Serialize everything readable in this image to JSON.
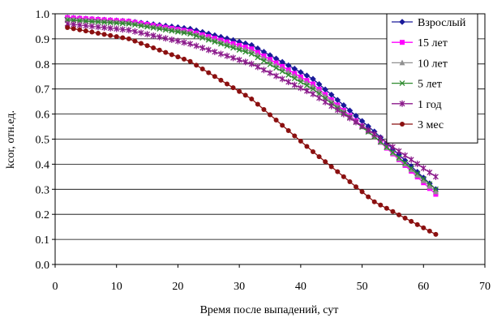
{
  "chart_data": {
    "type": "line",
    "title": "",
    "xlabel": "Время после выпадений, сут",
    "ylabel": "kcor, отн.ед.",
    "xlim": [
      0,
      70
    ],
    "ylim": [
      0.0,
      1.0
    ],
    "xticks": [
      0,
      10,
      20,
      30,
      40,
      50,
      60,
      70
    ],
    "xtick_labels": [
      "0",
      "10",
      "20",
      "30",
      "40",
      "50",
      "60",
      "70"
    ],
    "yticks": [
      0,
      0.1,
      0.2,
      0.3,
      0.4,
      0.5,
      0.6,
      0.7,
      0.8,
      0.9,
      1.0
    ],
    "ytick_labels": [
      "0.0",
      "0.1",
      "0.2",
      "0.3",
      "0.4",
      "0.5",
      "0.6",
      "0.7",
      "0.8",
      "0.9",
      "1.0"
    ],
    "grid": "horizontal",
    "legend_position": "top-right",
    "x": [
      2,
      12,
      22,
      32,
      42,
      52,
      62
    ],
    "series": [
      {
        "name": "Взрослый",
        "color": "#1a1a9a",
        "marker": "diamond",
        "values": [
          0.985,
          0.97,
          0.94,
          0.875,
          0.74,
          0.53,
          0.3
        ]
      },
      {
        "name": "15 лет",
        "color": "#ff00ff",
        "marker": "square",
        "values": [
          0.985,
          0.97,
          0.93,
          0.86,
          0.72,
          0.51,
          0.28
        ]
      },
      {
        "name": "10 лет",
        "color": "#909090",
        "marker": "triangle",
        "values": [
          0.98,
          0.965,
          0.925,
          0.85,
          0.71,
          0.51,
          0.29
        ]
      },
      {
        "name": "5 лет",
        "color": "#2e8b2e",
        "marker": "x",
        "values": [
          0.975,
          0.96,
          0.92,
          0.84,
          0.7,
          0.51,
          0.3
        ]
      },
      {
        "name": "1 год",
        "color": "#8b1a8b",
        "marker": "asterisk",
        "values": [
          0.96,
          0.935,
          0.88,
          0.8,
          0.68,
          0.52,
          0.35
        ]
      },
      {
        "name": "3 мес",
        "color": "#8b1010",
        "marker": "circle",
        "values": [
          0.945,
          0.9,
          0.81,
          0.66,
          0.45,
          0.25,
          0.12
        ]
      }
    ]
  }
}
